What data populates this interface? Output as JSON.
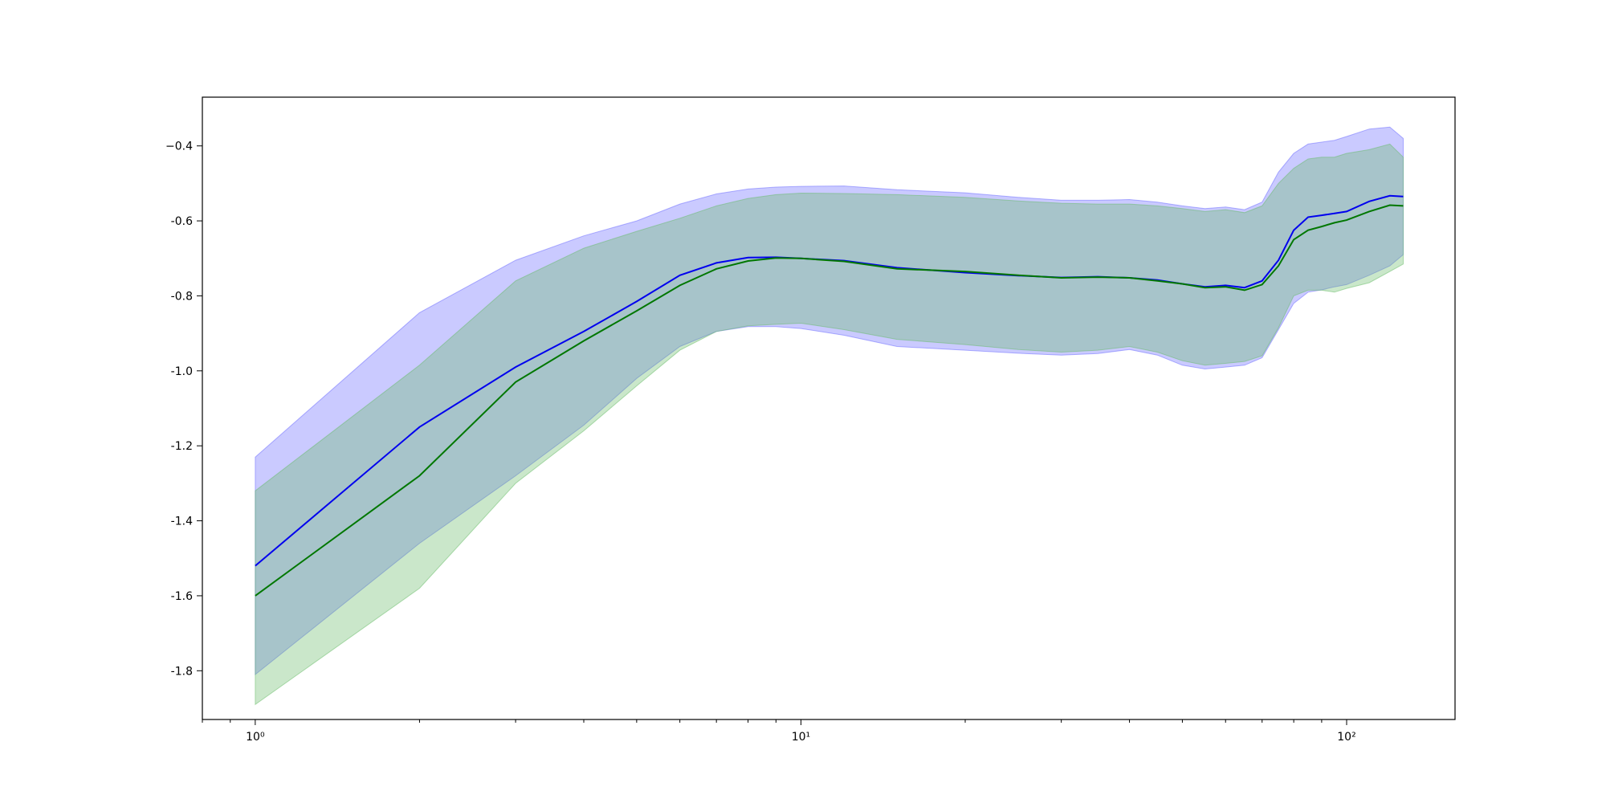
{
  "chart_data": {
    "type": "line",
    "title": "",
    "xlabel": "",
    "ylabel": "",
    "xscale": "log",
    "xlim": [
      0.8,
      158
    ],
    "ylim": [
      -1.93,
      -0.27
    ],
    "grid": false,
    "legend": "none",
    "x_ticks": [
      {
        "value": 1,
        "label": "10⁰"
      },
      {
        "value": 10,
        "label": "10¹"
      },
      {
        "value": 100,
        "label": "10²"
      }
    ],
    "y_ticks": [
      {
        "value": -0.4,
        "label": "−0.4"
      },
      {
        "value": -0.6,
        "label": "-0.6"
      },
      {
        "value": -0.8,
        "label": "-0.8"
      },
      {
        "value": -1.0,
        "label": "-1.0"
      },
      {
        "value": -1.2,
        "label": "-1.2"
      },
      {
        "value": -1.4,
        "label": "-1.4"
      },
      {
        "value": -1.6,
        "label": "-1.6"
      },
      {
        "value": -1.8,
        "label": "-1.8"
      }
    ],
    "series": [
      {
        "color": "#0000ee",
        "band_color": "#6666ff",
        "x": [
          1,
          2,
          3,
          4,
          5,
          6,
          7,
          8,
          9,
          10,
          12,
          15,
          20,
          25,
          30,
          35,
          40,
          45,
          50,
          55,
          60,
          65,
          70,
          75,
          80,
          85,
          90,
          95,
          100,
          110,
          120,
          127
        ],
        "y": [
          -1.52,
          -1.15,
          -0.99,
          -0.895,
          -0.815,
          -0.745,
          -0.712,
          -0.698,
          -0.697,
          -0.7,
          -0.706,
          -0.725,
          -0.738,
          -0.746,
          -0.751,
          -0.749,
          -0.752,
          -0.758,
          -0.768,
          -0.776,
          -0.772,
          -0.778,
          -0.76,
          -0.705,
          -0.625,
          -0.59,
          -0.585,
          -0.58,
          -0.575,
          -0.548,
          -0.533,
          -0.535
        ],
        "lower": [
          -1.81,
          -1.46,
          -1.28,
          -1.145,
          -1.02,
          -0.935,
          -0.895,
          -0.882,
          -0.882,
          -0.887,
          -0.905,
          -0.935,
          -0.945,
          -0.953,
          -0.958,
          -0.954,
          -0.943,
          -0.958,
          -0.985,
          -0.995,
          -0.99,
          -0.985,
          -0.965,
          -0.89,
          -0.82,
          -0.79,
          -0.784,
          -0.776,
          -0.77,
          -0.745,
          -0.72,
          -0.69
        ],
        "upper": [
          -1.23,
          -0.845,
          -0.705,
          -0.64,
          -0.6,
          -0.555,
          -0.528,
          -0.515,
          -0.51,
          -0.508,
          -0.507,
          -0.517,
          -0.525,
          -0.537,
          -0.545,
          -0.545,
          -0.543,
          -0.55,
          -0.56,
          -0.567,
          -0.563,
          -0.57,
          -0.55,
          -0.47,
          -0.42,
          -0.395,
          -0.39,
          -0.385,
          -0.375,
          -0.355,
          -0.35,
          -0.38
        ]
      },
      {
        "color": "#007700",
        "band_color": "#66bb66",
        "x": [
          1,
          2,
          3,
          4,
          5,
          6,
          7,
          8,
          9,
          10,
          12,
          15,
          20,
          25,
          30,
          35,
          40,
          45,
          50,
          55,
          60,
          65,
          70,
          75,
          80,
          85,
          90,
          95,
          100,
          110,
          120,
          127
        ],
        "y": [
          -1.6,
          -1.28,
          -1.03,
          -0.92,
          -0.84,
          -0.772,
          -0.728,
          -0.707,
          -0.699,
          -0.7,
          -0.708,
          -0.728,
          -0.735,
          -0.745,
          -0.752,
          -0.75,
          -0.752,
          -0.76,
          -0.768,
          -0.778,
          -0.776,
          -0.785,
          -0.77,
          -0.72,
          -0.65,
          -0.625,
          -0.615,
          -0.605,
          -0.598,
          -0.575,
          -0.558,
          -0.56
        ],
        "lower": [
          -1.89,
          -1.58,
          -1.3,
          -1.16,
          -1.04,
          -0.945,
          -0.895,
          -0.88,
          -0.876,
          -0.873,
          -0.89,
          -0.916,
          -0.93,
          -0.943,
          -0.95,
          -0.945,
          -0.935,
          -0.95,
          -0.973,
          -0.985,
          -0.98,
          -0.975,
          -0.96,
          -0.885,
          -0.8,
          -0.785,
          -0.785,
          -0.79,
          -0.78,
          -0.765,
          -0.735,
          -0.715
        ],
        "upper": [
          -1.32,
          -0.985,
          -0.76,
          -0.673,
          -0.628,
          -0.593,
          -0.56,
          -0.54,
          -0.53,
          -0.526,
          -0.527,
          -0.53,
          -0.537,
          -0.547,
          -0.553,
          -0.555,
          -0.555,
          -0.56,
          -0.567,
          -0.575,
          -0.57,
          -0.578,
          -0.56,
          -0.5,
          -0.46,
          -0.435,
          -0.43,
          -0.43,
          -0.42,
          -0.41,
          -0.395,
          -0.43
        ]
      }
    ]
  }
}
